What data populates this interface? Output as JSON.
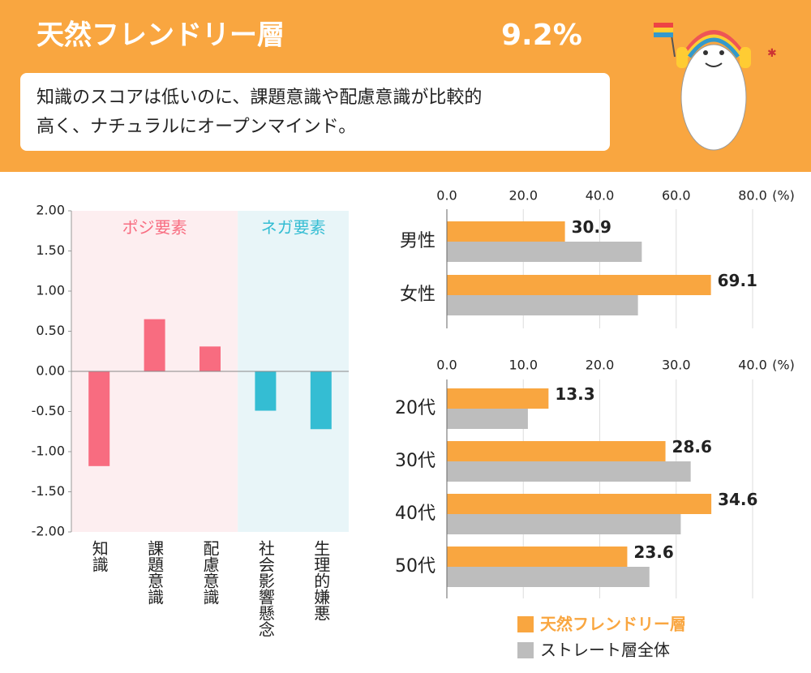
{
  "header": {
    "title": "天然フレンドリー層",
    "share": "9.2%",
    "description": [
      "知識のスコアは低いのに、課題意識や配慮意識が比較的",
      "高く、ナチュラルにオープンマインド。"
    ]
  },
  "chart_data": [
    {
      "type": "bar",
      "ylim": [
        -2,
        2
      ],
      "yticks": [
        {
          "value": 2,
          "label": "2.00"
        },
        {
          "value": 1.5,
          "label": "1.50"
        },
        {
          "value": 1,
          "label": "1.00"
        },
        {
          "value": 0.5,
          "label": "0.50"
        },
        {
          "value": 0,
          "label": "0.00"
        },
        {
          "value": -0.5,
          "label": "-0.50"
        },
        {
          "value": -1,
          "label": "-1.00"
        },
        {
          "value": -1.5,
          "label": "-1.50"
        },
        {
          "value": -2,
          "label": "-2.00"
        }
      ],
      "groups": [
        {
          "name": "ポジ要素",
          "color": "#f86c80",
          "background": "#fdeef0",
          "categories": [
            "知識",
            "課題意識",
            "配慮意識"
          ],
          "values": [
            -1.18,
            0.65,
            0.31
          ]
        },
        {
          "name": "ネガ要素",
          "color": "#34bdd3",
          "background": "#e8f5f8",
          "categories": [
            "社会影響懸念",
            "生理的嫌悪"
          ],
          "values": [
            -0.49,
            -0.72
          ]
        }
      ]
    },
    {
      "type": "bar",
      "horizontal": true,
      "categories": [
        "男性",
        "女性"
      ],
      "xlim": [
        0,
        80
      ],
      "xticks": [
        {
          "value": 0,
          "label": "0.0"
        },
        {
          "value": 20,
          "label": "20.0"
        },
        {
          "value": 40,
          "label": "40.0"
        },
        {
          "value": 60,
          "label": "60.0"
        },
        {
          "value": 80,
          "label": "80.0"
        }
      ],
      "unit": "(%)",
      "grid": true,
      "series": [
        {
          "name": "天然フレンドリー層",
          "color": "#f9a640",
          "values": [
            30.9,
            69.1
          ],
          "labels": true
        },
        {
          "name": "ストレート層全体",
          "color": "#bdbdbd",
          "values": [
            51,
            50
          ]
        }
      ]
    },
    {
      "type": "bar",
      "horizontal": true,
      "categories": [
        "20代",
        "30代",
        "40代",
        "50代"
      ],
      "xlim": [
        0,
        40
      ],
      "xticks": [
        {
          "value": 0,
          "label": "0.0"
        },
        {
          "value": 10,
          "label": "10.0"
        },
        {
          "value": 20,
          "label": "20.0"
        },
        {
          "value": 30,
          "label": "30.0"
        },
        {
          "value": 40,
          "label": "40.0"
        }
      ],
      "unit": "(%)",
      "grid": true,
      "series": [
        {
          "color": "#f9a640",
          "values": [
            13.3,
            28.6,
            34.6,
            23.6
          ],
          "labels": true
        },
        {
          "color": "#bdbdbd",
          "values": [
            10.6,
            31.9,
            30.6,
            26.5
          ]
        }
      ]
    }
  ]
}
